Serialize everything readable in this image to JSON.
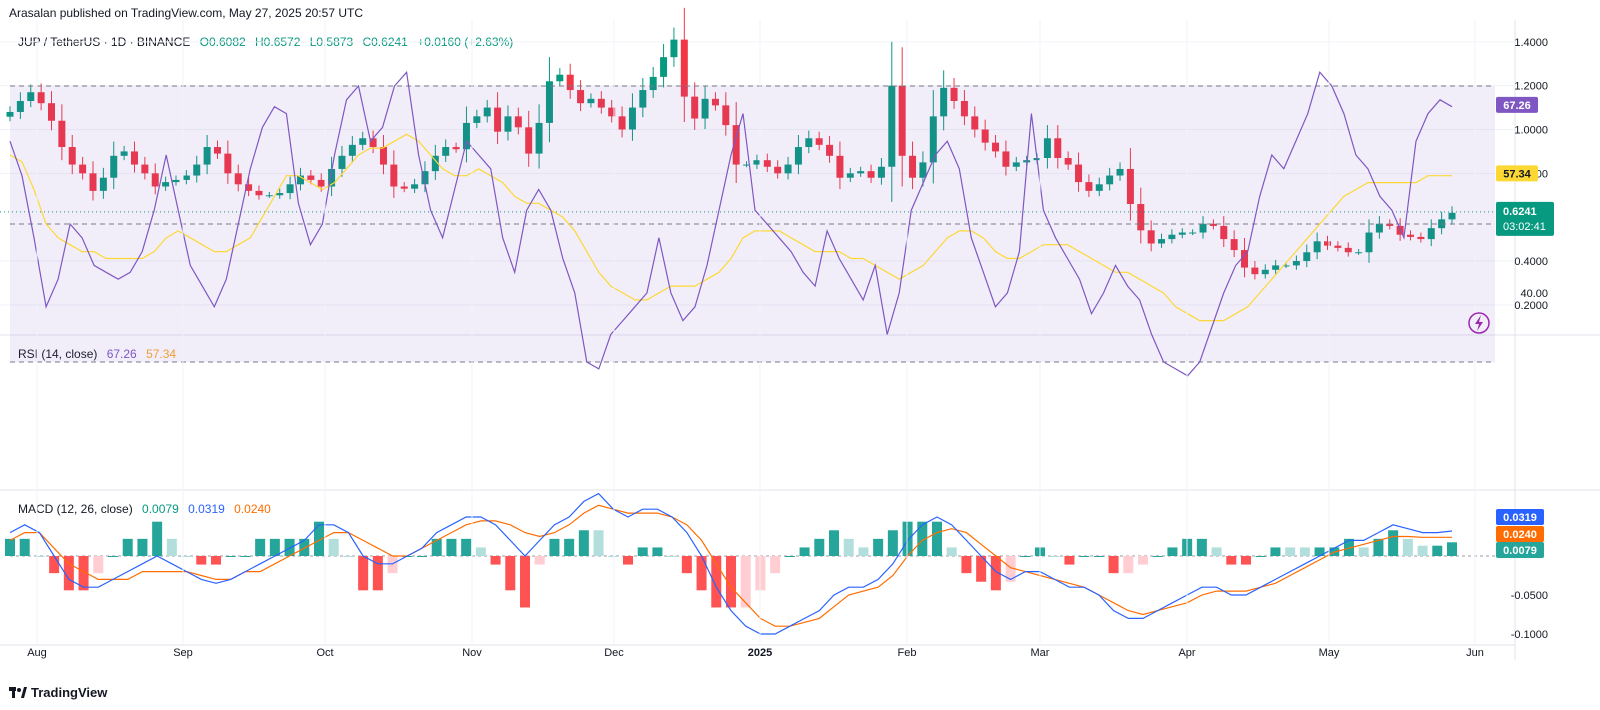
{
  "header": {
    "published": "Arasalan published on TradingView.com, May 27, 2025 20:57 UTC"
  },
  "price_legend": {
    "symbol": "JUP / TetherUS · 1D · BINANCE",
    "o": "O0.6082",
    "h": "H0.6572",
    "l": "L0.5873",
    "c": "C0.6241",
    "change": "+0.0160 (+2.63%)"
  },
  "price_badge": {
    "price": "0.6241",
    "countdown": "03:02:41"
  },
  "rsi_legend": {
    "label": "RSI (14, close)",
    "rsi": "67.26",
    "ma": "57.34"
  },
  "macd_legend": {
    "label": "MACD (12, 26, close)",
    "hist": "0.0079",
    "macd": "0.0319",
    "signal": "0.0240"
  },
  "footer": {
    "brand": "TradingView"
  },
  "colors": {
    "up": "#089981",
    "down": "#f23645",
    "rsi": "#7e57c2",
    "rsi_ma": "#fdd835",
    "macd": "#2962ff",
    "signal": "#ff6d00",
    "hist_up": "#26a69a",
    "hist_up_light": "#b2dfdb",
    "hist_down": "#ff5252",
    "hist_down_light": "#ffcdd2"
  },
  "chart_data": [
    {
      "type": "candlestick",
      "title": "JUP / TetherUS · 1D · BINANCE",
      "y_ticks": [
        "1.4000",
        "1.2000",
        "1.0000",
        "0.8000",
        "0.6241",
        "0.4000",
        "0.2000"
      ],
      "ylim": [
        0.2,
        1.4
      ],
      "x_ticks": [
        "Aug",
        "Sep",
        "Oct",
        "Nov",
        "Dec",
        "2025",
        "Feb",
        "Mar",
        "Apr",
        "May",
        "Jun"
      ],
      "close_path": [
        [
          1.08,
          1.13,
          1.17,
          1.12,
          1.04,
          0.92,
          0.84,
          0.8,
          0.72,
          0.78,
          0.88,
          0.9,
          0.84,
          0.8,
          0.74,
          0.76,
          0.77,
          0.79,
          0.84,
          0.92,
          0.89,
          0.8,
          0.75,
          0.72,
          0.7,
          0.7,
          0.71,
          0.75,
          0.79,
          0.77,
          0.74,
          0.82,
          0.88,
          0.93,
          0.96,
          0.92,
          0.84,
          0.74,
          0.73,
          0.75,
          0.81,
          0.88,
          0.92,
          0.91,
          1.03,
          1.06,
          1.1,
          0.99,
          1.06,
          1.01,
          0.89,
          1.03,
          1.22,
          1.25,
          1.18,
          1.12,
          1.14,
          1.1,
          1.06,
          1.0,
          1.1,
          1.18,
          1.24,
          1.33,
          1.41,
          1.15,
          1.05,
          1.14,
          1.11,
          1.02,
          0.84,
          0.84,
          0.86,
          0.83,
          0.8,
          0.84,
          0.92,
          0.96,
          0.93,
          0.88,
          0.78,
          0.8,
          0.81,
          0.78,
          0.83,
          1.2,
          0.88,
          0.78,
          0.85,
          1.06,
          1.19,
          1.13,
          1.06,
          1.0,
          0.94,
          0.9,
          0.83,
          0.85,
          0.86,
          0.87,
          0.96,
          0.87,
          0.84,
          0.76,
          0.72,
          0.75,
          0.79,
          0.82,
          0.66,
          0.54,
          0.48,
          0.5,
          0.52,
          0.53,
          0.53,
          0.57,
          0.56,
          0.5,
          0.45,
          0.37,
          0.34,
          0.36,
          0.38,
          0.38,
          0.4,
          0.44,
          0.49,
          0.47,
          0.46,
          0.44,
          0.44,
          0.53,
          0.57,
          0.56,
          0.52,
          0.51,
          0.5,
          0.55,
          0.59,
          0.62
        ]
      ],
      "last_price": 0.6241
    },
    {
      "type": "line",
      "title": "RSI (14, close)",
      "y_ticks": [
        "40.00"
      ],
      "guides": [
        70,
        50,
        30
      ],
      "series": [
        {
          "name": "RSI",
          "values": [
            62,
            57,
            48,
            38,
            42,
            50,
            48,
            44,
            43,
            42,
            43,
            46,
            52,
            60,
            52,
            44,
            41,
            38,
            42,
            50,
            58,
            64,
            67,
            66,
            53,
            47,
            50,
            60,
            68,
            70,
            62,
            64,
            70,
            72,
            60,
            52,
            48,
            55,
            62,
            60,
            58,
            48,
            43,
            52,
            55,
            52,
            45,
            40,
            30,
            29,
            34,
            36,
            38,
            40,
            48,
            40,
            36,
            38,
            44,
            52,
            60,
            66,
            52,
            50,
            48,
            46,
            43,
            41,
            49,
            45,
            42,
            39,
            44,
            34,
            40,
            52,
            56,
            60,
            62,
            58,
            48,
            43,
            38,
            40,
            46,
            66,
            52,
            48,
            45,
            42,
            37,
            40,
            44,
            41,
            39,
            34,
            30,
            29,
            28,
            30,
            35,
            40,
            44,
            46,
            54,
            60,
            58,
            62,
            66,
            72,
            70,
            66,
            60,
            58,
            54,
            52,
            48,
            62,
            66,
            68,
            67
          ]
        },
        {
          "name": "RSI MA",
          "values": [
            60,
            59,
            55,
            50,
            48,
            47,
            46,
            46,
            45,
            45,
            45,
            45,
            46,
            48,
            49,
            48,
            47,
            46,
            46,
            47,
            48,
            51,
            54,
            57,
            57,
            56,
            55,
            56,
            58,
            60,
            61,
            61,
            62,
            63,
            62,
            60,
            58,
            57,
            57,
            58,
            57,
            56,
            54,
            53,
            53,
            52,
            51,
            49,
            46,
            43,
            41,
            40,
            39,
            39,
            40,
            41,
            41,
            41,
            42,
            43,
            45,
            48,
            49,
            49,
            49,
            48,
            47,
            46,
            46,
            46,
            45,
            45,
            44,
            43,
            42,
            43,
            44,
            46,
            48,
            49,
            49,
            48,
            46,
            45,
            45,
            46,
            47,
            47,
            47,
            46,
            45,
            44,
            43,
            43,
            42,
            41,
            40,
            38,
            37,
            36,
            36,
            36,
            37,
            38,
            40,
            42,
            44,
            46,
            48,
            50,
            52,
            54,
            55,
            56,
            56,
            56,
            56,
            56,
            57,
            57,
            57
          ]
        }
      ],
      "last_values": {
        "rsi": 67.26,
        "ma": 57.34
      }
    },
    {
      "type": "line",
      "title": "MACD (12, 26, close)",
      "y_ticks": [
        "-0.0500",
        "-0.1000"
      ],
      "series": [
        {
          "name": "MACD",
          "values": [
            0.03,
            0.04,
            0.03,
            0.0,
            -0.03,
            -0.04,
            -0.04,
            -0.03,
            -0.02,
            -0.01,
            0.0,
            -0.01,
            -0.02,
            -0.03,
            -0.035,
            -0.03,
            -0.02,
            -0.01,
            0.0,
            0.01,
            0.02,
            0.04,
            0.04,
            0.03,
            0.0,
            -0.01,
            -0.01,
            0.0,
            0.01,
            0.03,
            0.04,
            0.05,
            0.05,
            0.04,
            0.02,
            0.0,
            0.02,
            0.04,
            0.05,
            0.07,
            0.08,
            0.06,
            0.05,
            0.06,
            0.06,
            0.05,
            0.03,
            0.0,
            -0.04,
            -0.07,
            -0.09,
            -0.1,
            -0.1,
            -0.09,
            -0.08,
            -0.07,
            -0.05,
            -0.04,
            -0.04,
            -0.03,
            -0.01,
            0.02,
            0.04,
            0.05,
            0.04,
            0.02,
            0.0,
            -0.02,
            -0.03,
            -0.02,
            -0.02,
            -0.03,
            -0.04,
            -0.04,
            -0.05,
            -0.07,
            -0.08,
            -0.08,
            -0.07,
            -0.06,
            -0.05,
            -0.04,
            -0.04,
            -0.05,
            -0.05,
            -0.04,
            -0.03,
            -0.02,
            -0.01,
            0.0,
            0.01,
            0.02,
            0.02,
            0.03,
            0.04,
            0.035,
            0.03,
            0.03,
            0.032
          ]
        },
        {
          "name": "Signal",
          "values": [
            0.02,
            0.03,
            0.03,
            0.01,
            -0.01,
            -0.02,
            -0.03,
            -0.03,
            -0.03,
            -0.02,
            -0.02,
            -0.02,
            -0.02,
            -0.025,
            -0.03,
            -0.03,
            -0.02,
            -0.02,
            -0.01,
            0.0,
            0.01,
            0.02,
            0.03,
            0.03,
            0.02,
            0.01,
            0.0,
            0.0,
            0.01,
            0.02,
            0.03,
            0.04,
            0.045,
            0.045,
            0.04,
            0.03,
            0.025,
            0.03,
            0.04,
            0.055,
            0.065,
            0.06,
            0.055,
            0.055,
            0.055,
            0.05,
            0.04,
            0.02,
            -0.01,
            -0.04,
            -0.06,
            -0.08,
            -0.09,
            -0.09,
            -0.085,
            -0.08,
            -0.065,
            -0.05,
            -0.045,
            -0.04,
            -0.025,
            0.0,
            0.02,
            0.03,
            0.035,
            0.03,
            0.015,
            0.0,
            -0.015,
            -0.02,
            -0.025,
            -0.03,
            -0.035,
            -0.04,
            -0.05,
            -0.06,
            -0.07,
            -0.075,
            -0.07,
            -0.065,
            -0.06,
            -0.05,
            -0.045,
            -0.045,
            -0.045,
            -0.04,
            -0.035,
            -0.025,
            -0.015,
            -0.005,
            0.005,
            0.01,
            0.015,
            0.02,
            0.025,
            0.025,
            0.024,
            0.024,
            0.024
          ]
        }
      ],
      "last_values": {
        "hist": 0.0079,
        "macd": 0.0319,
        "signal": 0.024
      }
    }
  ]
}
